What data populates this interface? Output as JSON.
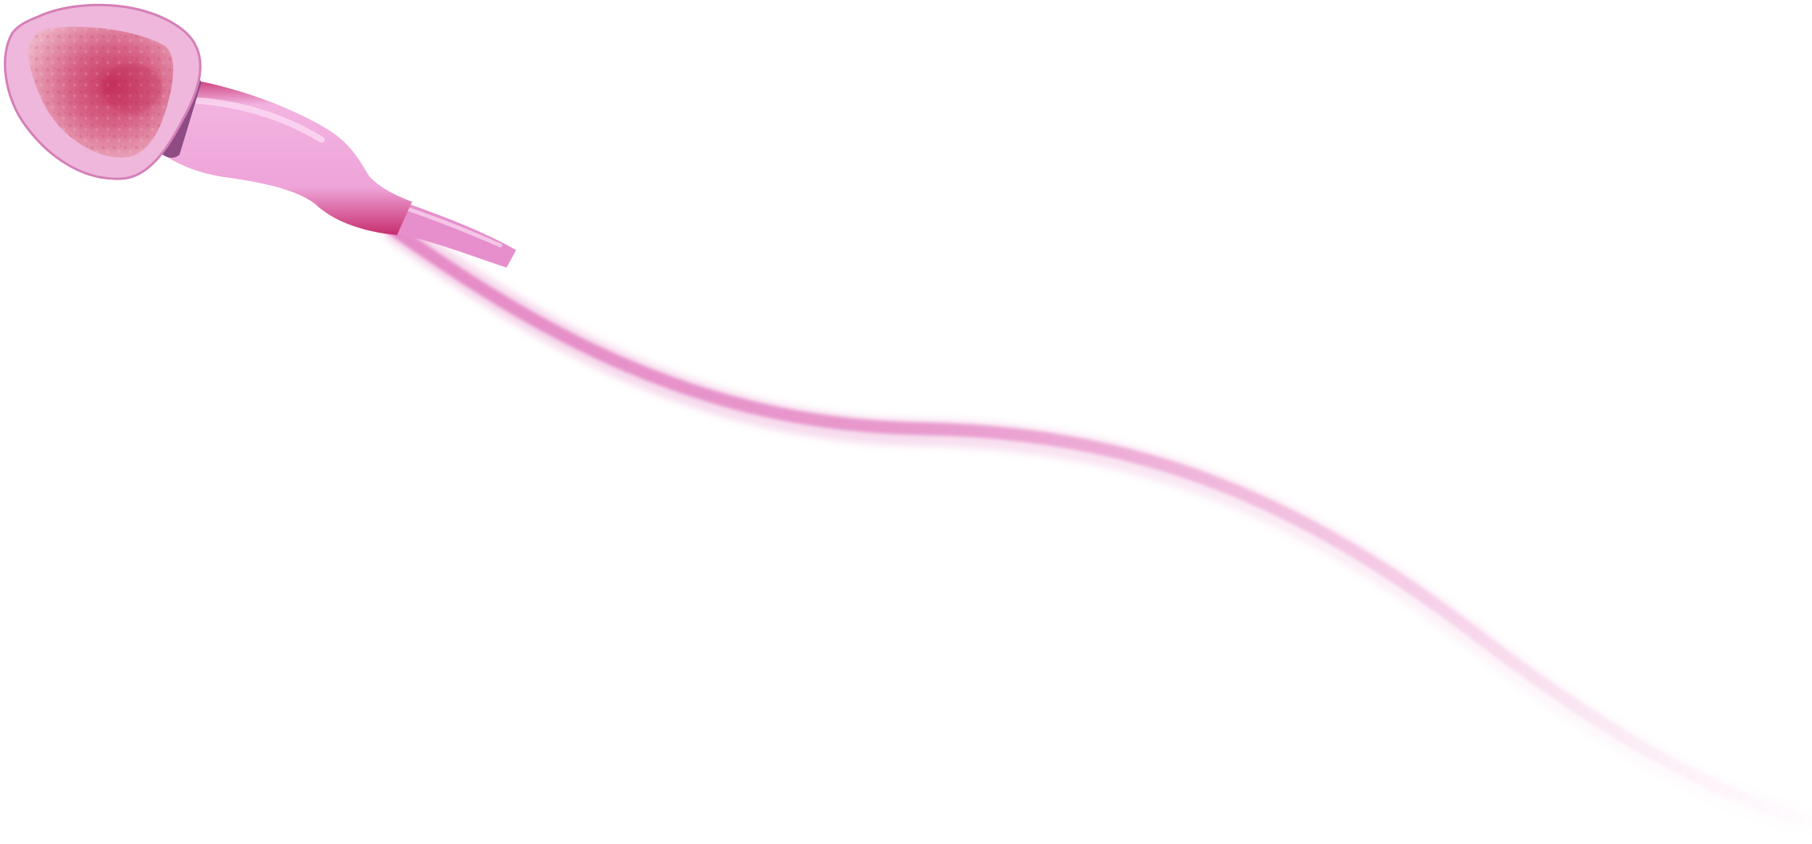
{
  "image": {
    "subject_icon": "sperm-cell-icon",
    "background_color": "#ffffff",
    "colors": {
      "membrane": "#e9a6cf",
      "membrane_edge": "#c85fa3",
      "nucleus_light": "#e8a0ba",
      "nucleus_dark": "#c8365f",
      "collar": "#8e4b84",
      "midpiece_light": "#f2b3e0",
      "midpiece_dark": "#c62d6d",
      "tail": "#e58ac6"
    }
  }
}
